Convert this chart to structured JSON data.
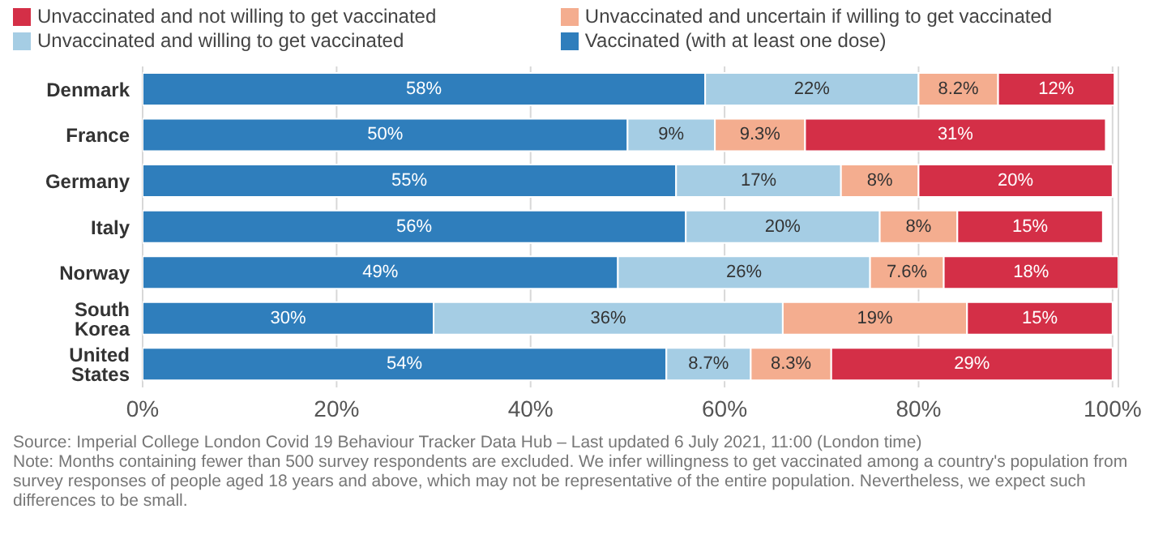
{
  "chart_data": {
    "type": "bar",
    "orientation": "horizontal",
    "stacked": true,
    "legend": "top",
    "grid": "x",
    "categories": [
      "Denmark",
      "France",
      "Germany",
      "Italy",
      "Norway",
      "South Korea",
      "United States"
    ],
    "series": [
      {
        "name": "Vaccinated (with at least one dose)",
        "color": "#2f7ebc",
        "values": [
          58,
          50,
          55,
          56,
          49,
          30,
          54
        ],
        "value_labels": [
          "58%",
          "50%",
          "55%",
          "56%",
          "49%",
          "30%",
          "54%"
        ]
      },
      {
        "name": "Unvaccinated and willing to get vaccinated",
        "color": "#a5cde4",
        "values": [
          22,
          9,
          17,
          20,
          26,
          36,
          8.7
        ],
        "value_labels": [
          "22%",
          "9%",
          "17%",
          "20%",
          "26%",
          "36%",
          "8.7%"
        ]
      },
      {
        "name": "Unvaccinated and uncertain if willing to get vaccinated",
        "color": "#f4ad8f",
        "values": [
          8.2,
          9.3,
          8,
          8,
          7.6,
          19,
          8.3
        ],
        "value_labels": [
          "8.2%",
          "9.3%",
          "8%",
          "8%",
          "7.6%",
          "19%",
          "8.3%"
        ]
      },
      {
        "name": "Unvaccinated and not willing to get vaccinated",
        "color": "#d42f47",
        "values": [
          12,
          31,
          20,
          15,
          18,
          15,
          29
        ],
        "value_labels": [
          "12%",
          "31%",
          "20%",
          "15%",
          "18%",
          "15%",
          "29%"
        ]
      }
    ],
    "xlim": [
      0,
      100.6
    ],
    "xticks": [
      {
        "value": 0,
        "label": "0%"
      },
      {
        "value": 20,
        "label": "20%"
      },
      {
        "value": 40,
        "label": "40%"
      },
      {
        "value": 60,
        "label": "60%"
      },
      {
        "value": 80,
        "label": "80%"
      },
      {
        "value": 100,
        "label": "100%"
      }
    ],
    "annotations": [
      "Source: Imperial College London Covid 19 Behaviour Tracker Data Hub – Last updated 6 July 2021, 11:00 (London time)",
      "Note: Months containing fewer than 500 survey respondents are excluded. We infer willingness to get vaccinated among a country's population from survey responses of people aged 18 years and above, which may not be representative of the entire population. Nevertheless, we expect such differences to be small."
    ]
  }
}
